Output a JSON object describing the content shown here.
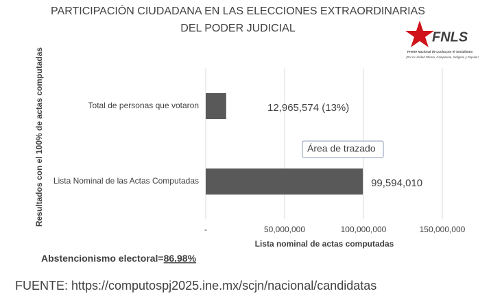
{
  "chart_data": {
    "type": "hbar",
    "title": [
      "PARTICIPACIÓN CIUDADANA EN LAS ELECCIONES EXTRAORDINARIAS",
      "DEL PODER JUDICIAL"
    ],
    "y_label": "Resultados con el 100% de actas computadas",
    "x_label": "Lista nominal de actas computadas",
    "categories": [
      "Total de personas que votaron",
      "Lista Nominal de las Actas Computadas"
    ],
    "values": [
      12965574,
      99594010
    ],
    "value_labels": [
      "12,965,574  (13%)",
      "99,594,010"
    ],
    "color": "#595959",
    "xlim": [
      0,
      150000000
    ],
    "xticks": [
      {
        "value": 0,
        "label": "-"
      },
      {
        "value": 50000000,
        "label": "50,000,000"
      },
      {
        "value": 100000000,
        "label": "100,000,000"
      },
      {
        "value": 150000000,
        "label": "150,000,000"
      }
    ],
    "grid": true,
    "tooltip": "Área de trazado",
    "annotation": {
      "text": "Abstencionismo electoral=",
      "highlight": "86.98%"
    },
    "source": "FUENTE: https://computospj2025.ine.mx/scjn/nacional/candidatas",
    "logo": {
      "name": "FNLS",
      "org": "Frente Nacional de Lucha por el Socialismo",
      "motto": "¡Por la Unidad Obrera, Campesina, Indígena y Popular!"
    }
  }
}
